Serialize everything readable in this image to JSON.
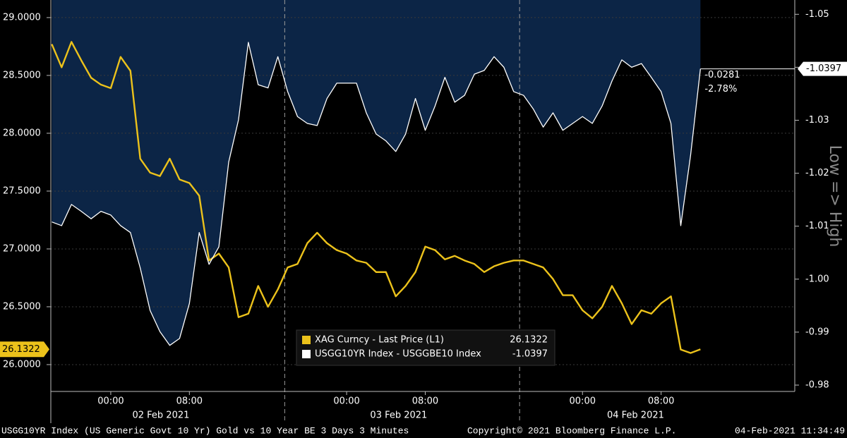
{
  "chart_data": {
    "type": "line",
    "title": "USGG10YR Index (US Generic Govt 10 Yr) Gold vs 10 Year BE 3 Days 3 Minutes",
    "copyright": "Copyright© 2021 Bloomberg Finance L.P.",
    "timestamp": "04-Feb-2021 11:34:49",
    "y2_label": "Low => High",
    "annotations": [
      "-0.0281",
      "-2.78%"
    ],
    "x": [
      -6,
      -5,
      -4,
      -3,
      -2,
      -1,
      0,
      1,
      2,
      3,
      4,
      5,
      6,
      7,
      8,
      9,
      10,
      11,
      12,
      13,
      14,
      15,
      16,
      17,
      18,
      19,
      20,
      21,
      22,
      23,
      24,
      25,
      26,
      27,
      28,
      29,
      30,
      31,
      32,
      33,
      34,
      35,
      36,
      37,
      38,
      39,
      40,
      41,
      42,
      43,
      44,
      45,
      46,
      47,
      48,
      49,
      50,
      51,
      52,
      53,
      54,
      55,
      56,
      57,
      58,
      59,
      60
    ],
    "xlim": [
      -6.1,
      69.6
    ],
    "xticks": [
      {
        "value": 0,
        "label": "00:00"
      },
      {
        "value": 8,
        "label": "08:00"
      },
      {
        "value": 24,
        "label": "00:00"
      },
      {
        "value": 32,
        "label": "08:00"
      },
      {
        "value": 48,
        "label": "00:00"
      },
      {
        "value": 56,
        "label": "08:00"
      }
    ],
    "x_date_labels": [
      {
        "value": 5.1,
        "label": "02 Feb 2021"
      },
      {
        "value": 29.3,
        "label": "03 Feb 2021"
      },
      {
        "value": 53.4,
        "label": "04 Feb 2021"
      }
    ],
    "xgrid": [
      17.7,
      41.6
    ],
    "ylim": [
      25.768,
      29.152
    ],
    "yticks": [
      {
        "value": 26,
        "label": "26.0000"
      },
      {
        "value": 26.5,
        "label": "26.5000"
      },
      {
        "value": 27,
        "label": "27.0000"
      },
      {
        "value": 27.5,
        "label": "27.5000"
      },
      {
        "value": 28,
        "label": "28.0000"
      },
      {
        "value": 28.5,
        "label": "28.5000"
      },
      {
        "value": 29,
        "label": "29.0000"
      }
    ],
    "y2lim": [
      -0.9788,
      -1.0527
    ],
    "y2ticks": [
      -0.98,
      -0.99,
      {
        "value": -1,
        "label": "-1.00"
      },
      -1.01,
      -1.02,
      -1.03,
      -1.04,
      -1.05
    ],
    "grid": true,
    "series": [
      {
        "name": "XAG Curncy - Last Price (L1)",
        "color": "#ecc21b",
        "axis": "y",
        "values": [
          28.77,
          28.57,
          28.79,
          28.63,
          28.48,
          28.42,
          28.39,
          28.66,
          28.54,
          27.78,
          27.66,
          27.63,
          27.78,
          27.6,
          27.57,
          27.46,
          26.9,
          26.96,
          26.84,
          26.41,
          26.44,
          26.68,
          26.5,
          26.65,
          26.84,
          26.87,
          27.05,
          27.14,
          27.05,
          26.99,
          26.96,
          26.9,
          26.88,
          26.8,
          26.8,
          26.59,
          26.68,
          26.8,
          27.02,
          26.99,
          26.91,
          26.94,
          26.9,
          26.87,
          26.8,
          26.85,
          26.88,
          26.9,
          26.9,
          26.87,
          26.84,
          26.74,
          26.6,
          26.6,
          26.47,
          26.4,
          26.5,
          26.68,
          26.53,
          26.35,
          26.47,
          26.44,
          26.53,
          26.59,
          26.13,
          26.1,
          26.1322
        ]
      },
      {
        "name": "USGG10YR Index - USGGBE10 Index",
        "color": "#ffffff",
        "area_color": "#0c2546",
        "axis": "y2",
        "values": [
          -1.0108,
          -1.0101,
          -1.0141,
          -1.0128,
          -1.0114,
          -1.0128,
          -1.0121,
          -1.0101,
          -1.0088,
          -1.0021,
          -0.9941,
          -0.9901,
          -0.9875,
          -0.9888,
          -0.9954,
          -1.0088,
          -1.0028,
          -1.0061,
          -1.0221,
          -1.0301,
          -1.0447,
          -1.0367,
          -1.0361,
          -1.042,
          -1.0354,
          -1.0307,
          -1.0294,
          -1.029,
          -1.0341,
          -1.037,
          -1.037,
          -1.037,
          -1.0314,
          -1.0274,
          -1.0261,
          -1.0241,
          -1.0274,
          -1.0341,
          -1.0281,
          -1.0327,
          -1.0381,
          -1.0334,
          -1.0347,
          -1.0387,
          -1.0394,
          -1.042,
          -1.04,
          -1.0354,
          -1.0347,
          -1.0321,
          -1.0287,
          -1.0314,
          -1.0281,
          -1.0294,
          -1.0307,
          -1.0294,
          -1.0327,
          -1.0374,
          -1.0414,
          -1.04,
          -1.0407,
          -1.0381,
          -1.0354,
          -1.0294,
          -1.0101,
          -1.0234,
          -1.0397
        ]
      }
    ]
  }
}
